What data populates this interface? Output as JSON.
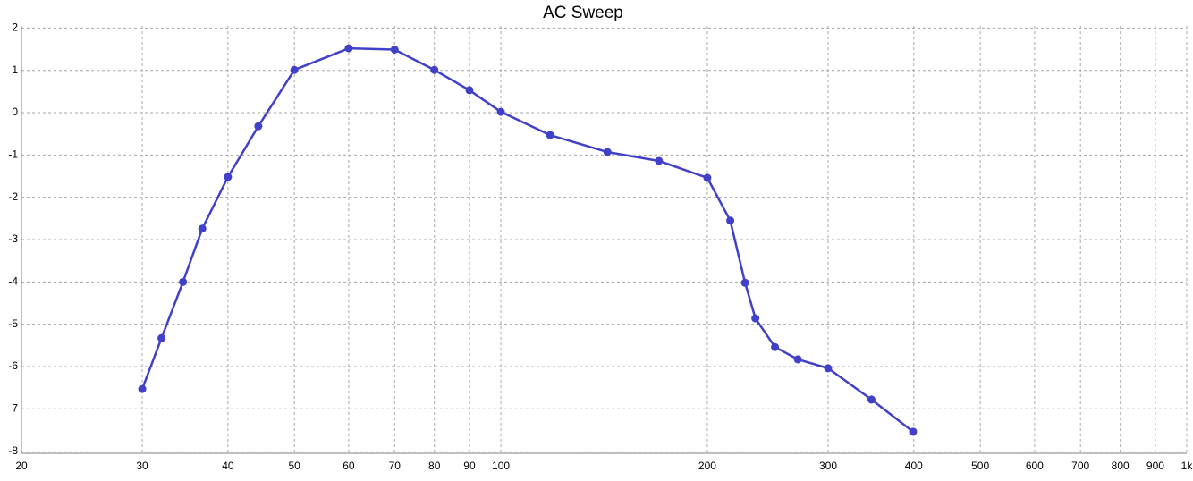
{
  "chart_data": {
    "type": "line",
    "title": "AC Sweep",
    "xscale": "log",
    "xlim": [
      20,
      1000
    ],
    "xticks": [
      20,
      30,
      40,
      50,
      60,
      70,
      80,
      90,
      100,
      200,
      300,
      400,
      500,
      600,
      700,
      800,
      900,
      {
        "value": 1000,
        "label": "1k"
      }
    ],
    "ylim": [
      -8.05,
      2.05
    ],
    "yticks": [
      2,
      1,
      0,
      -1,
      -2,
      -3,
      -4,
      -5,
      -6,
      -7,
      -8
    ],
    "grid": true,
    "series": [
      {
        "color": "#4040c8",
        "x": [
          30,
          32,
          34.4,
          36.7,
          40,
          44.3,
          50,
          60,
          70,
          80,
          90,
          100,
          118,
          143,
          170,
          200,
          216,
          227,
          235,
          251,
          271,
          300,
          347,
          399
        ],
        "values": [
          -6.53,
          -5.33,
          -4.0,
          -2.74,
          -1.52,
          -0.32,
          1.01,
          1.52,
          1.49,
          1.01,
          0.53,
          0.02,
          -0.53,
          -0.93,
          -1.14,
          -1.54,
          -2.55,
          -4.02,
          -4.86,
          -5.54,
          -5.83,
          -6.04,
          -6.78,
          -7.54
        ]
      }
    ]
  }
}
